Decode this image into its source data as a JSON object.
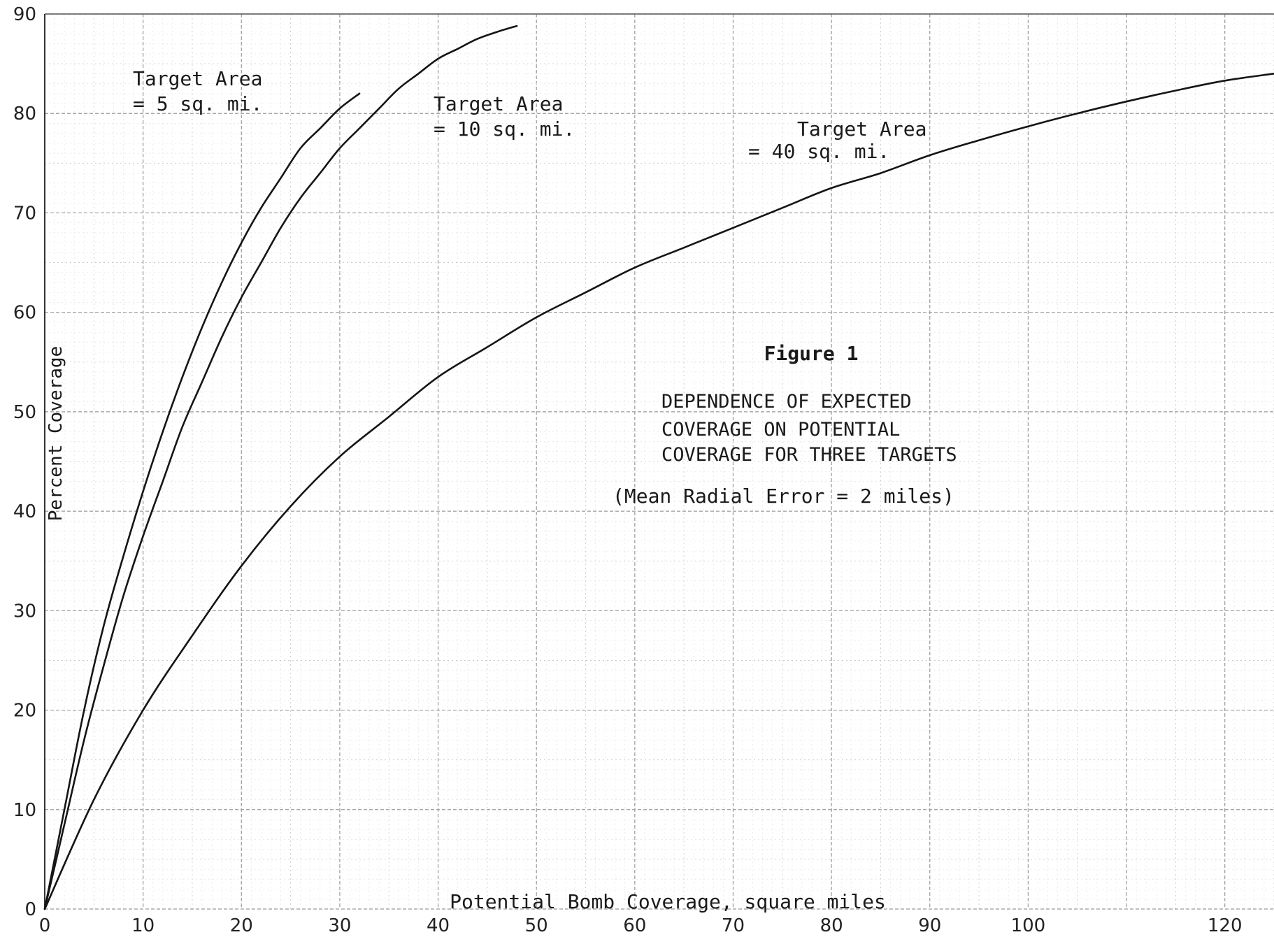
{
  "chart_data": {
    "type": "line",
    "xlabel": "Potential Bomb Coverage, square miles",
    "ylabel": "Percent Coverage",
    "xlim": [
      0,
      125
    ],
    "ylim": [
      0,
      90
    ],
    "x_ticks": [
      0,
      10,
      20,
      30,
      40,
      50,
      60,
      70,
      80,
      90,
      100,
      120
    ],
    "y_ticks": [
      0,
      10,
      20,
      30,
      40,
      50,
      60,
      70,
      80,
      90
    ],
    "grid": true,
    "series": [
      {
        "name": "Target Area = 5 sq. mi.",
        "label_lines": [
          "Target Area",
          "= 5 sq. mi."
        ],
        "x": [
          0,
          2,
          4,
          6,
          8,
          10,
          12,
          14,
          16,
          18,
          20,
          22,
          24,
          26,
          28,
          30,
          32
        ],
        "y": [
          0,
          10,
          20,
          28.5,
          35.5,
          42,
          48,
          53.5,
          58.5,
          63,
          67,
          70.5,
          73.5,
          76.5,
          78.5,
          80.5,
          82
        ]
      },
      {
        "name": "Target Area = 10 sq. mi.",
        "label_lines": [
          "Target Area",
          "= 10 sq. mi."
        ],
        "x": [
          0,
          2,
          4,
          6,
          8,
          10,
          12,
          14,
          16,
          18,
          20,
          22,
          24,
          26,
          28,
          30,
          32,
          34,
          36,
          38,
          40,
          42,
          44,
          46,
          48
        ],
        "y": [
          0,
          8.5,
          17,
          24.5,
          31.5,
          37.5,
          43,
          48.5,
          53,
          57.5,
          61.5,
          65,
          68.5,
          71.5,
          74,
          76.5,
          78.5,
          80.5,
          82.5,
          84,
          85.5,
          86.5,
          87.5,
          88.2,
          88.8
        ]
      },
      {
        "name": "Target Area = 40 sq. mi.",
        "label_lines": [
          "Target Area",
          "= 40 sq. mi."
        ],
        "x": [
          0,
          5,
          10,
          15,
          20,
          25,
          30,
          35,
          40,
          45,
          50,
          55,
          60,
          65,
          70,
          75,
          80,
          85,
          90,
          95,
          100,
          105,
          110,
          115,
          120,
          125
        ],
        "y": [
          0,
          11,
          20,
          27.5,
          34.5,
          40.5,
          45.5,
          49.5,
          53.5,
          56.5,
          59.5,
          62,
          64.5,
          66.5,
          68.5,
          70.5,
          72.5,
          74,
          75.8,
          77.3,
          78.7,
          80,
          81.2,
          82.3,
          83.3,
          84
        ]
      }
    ],
    "annotations": {
      "figure": "Figure 1",
      "caption_lines": [
        "DEPENDENCE OF EXPECTED",
        "COVERAGE ON POTENTIAL",
        "COVERAGE FOR THREE TARGETS"
      ],
      "note": "(Mean Radial Error = 2 miles)"
    }
  }
}
